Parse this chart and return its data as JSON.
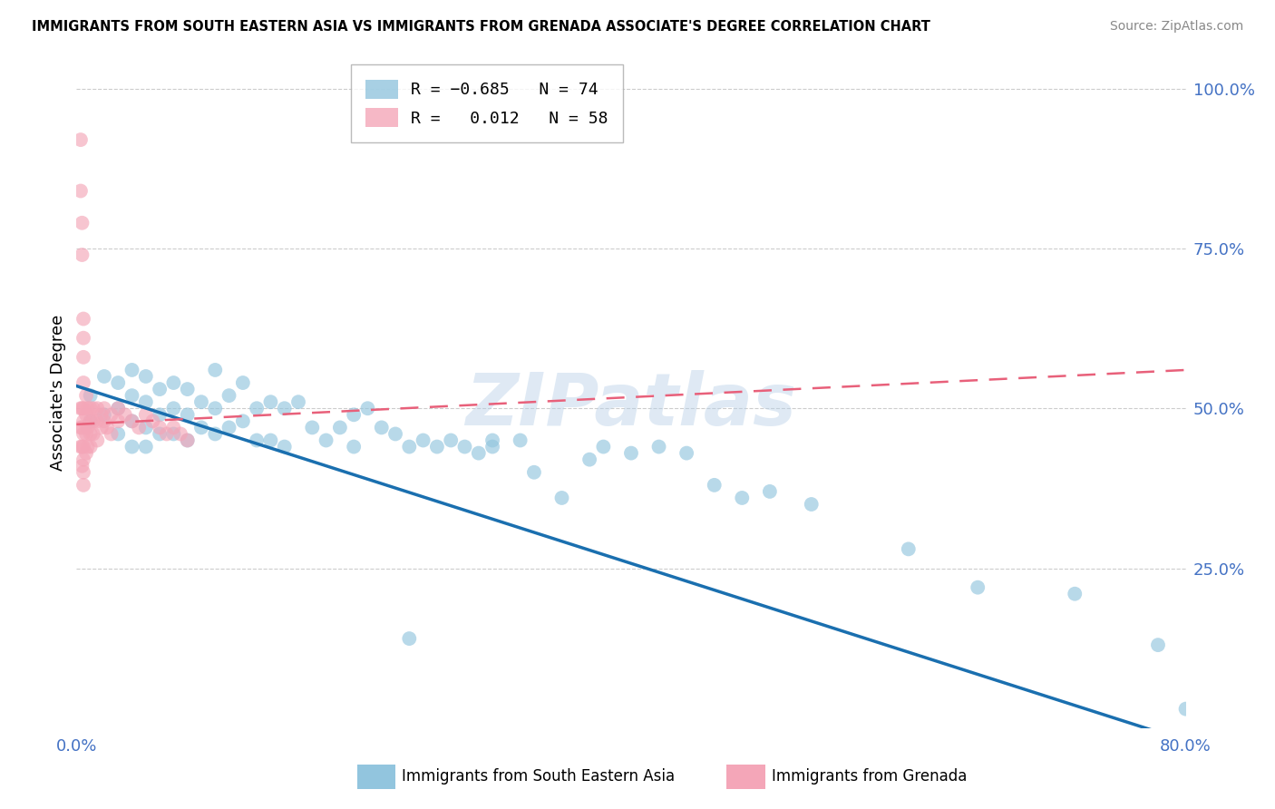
{
  "title": "IMMIGRANTS FROM SOUTH EASTERN ASIA VS IMMIGRANTS FROM GRENADA ASSOCIATE'S DEGREE CORRELATION CHART",
  "source": "Source: ZipAtlas.com",
  "ylabel": "Associate's Degree",
  "right_yticks": [
    "100.0%",
    "75.0%",
    "50.0%",
    "25.0%"
  ],
  "right_ytick_vals": [
    1.0,
    0.75,
    0.5,
    0.25
  ],
  "color_blue": "#92c5de",
  "color_pink": "#f4a6b8",
  "trendline_blue_color": "#1a6faf",
  "trendline_pink_color": "#e8607a",
  "watermark": "ZIPatlas",
  "xlim": [
    0.0,
    0.8
  ],
  "ylim": [
    0.0,
    1.05
  ],
  "background_color": "#ffffff",
  "grid_color": "#cccccc",
  "blue_scatter_x": [
    0.01,
    0.01,
    0.02,
    0.02,
    0.03,
    0.03,
    0.03,
    0.04,
    0.04,
    0.04,
    0.04,
    0.05,
    0.05,
    0.05,
    0.05,
    0.06,
    0.06,
    0.06,
    0.07,
    0.07,
    0.07,
    0.08,
    0.08,
    0.08,
    0.09,
    0.09,
    0.1,
    0.1,
    0.1,
    0.11,
    0.11,
    0.12,
    0.12,
    0.13,
    0.13,
    0.14,
    0.14,
    0.15,
    0.15,
    0.16,
    0.17,
    0.18,
    0.19,
    0.2,
    0.2,
    0.21,
    0.22,
    0.23,
    0.24,
    0.25,
    0.26,
    0.27,
    0.28,
    0.29,
    0.3,
    0.3,
    0.32,
    0.33,
    0.35,
    0.37,
    0.38,
    0.4,
    0.42,
    0.44,
    0.46,
    0.48,
    0.5,
    0.53,
    0.6,
    0.65,
    0.72,
    0.78,
    0.8,
    0.24
  ],
  "blue_scatter_y": [
    0.52,
    0.48,
    0.55,
    0.49,
    0.54,
    0.5,
    0.46,
    0.56,
    0.52,
    0.48,
    0.44,
    0.55,
    0.51,
    0.47,
    0.44,
    0.53,
    0.49,
    0.46,
    0.54,
    0.5,
    0.46,
    0.53,
    0.49,
    0.45,
    0.51,
    0.47,
    0.56,
    0.5,
    0.46,
    0.52,
    0.47,
    0.54,
    0.48,
    0.5,
    0.45,
    0.51,
    0.45,
    0.5,
    0.44,
    0.51,
    0.47,
    0.45,
    0.47,
    0.49,
    0.44,
    0.5,
    0.47,
    0.46,
    0.44,
    0.45,
    0.44,
    0.45,
    0.44,
    0.43,
    0.45,
    0.44,
    0.45,
    0.4,
    0.36,
    0.42,
    0.44,
    0.43,
    0.44,
    0.43,
    0.38,
    0.36,
    0.37,
    0.35,
    0.28,
    0.22,
    0.21,
    0.13,
    0.03,
    0.14
  ],
  "pink_scatter_x": [
    0.003,
    0.003,
    0.003,
    0.003,
    0.003,
    0.004,
    0.004,
    0.004,
    0.004,
    0.004,
    0.004,
    0.005,
    0.005,
    0.005,
    0.005,
    0.005,
    0.005,
    0.005,
    0.005,
    0.005,
    0.005,
    0.005,
    0.007,
    0.007,
    0.007,
    0.007,
    0.008,
    0.008,
    0.008,
    0.01,
    0.01,
    0.01,
    0.01,
    0.012,
    0.012,
    0.012,
    0.015,
    0.015,
    0.015,
    0.018,
    0.018,
    0.02,
    0.02,
    0.022,
    0.025,
    0.025,
    0.03,
    0.03,
    0.035,
    0.04,
    0.045,
    0.05,
    0.055,
    0.06,
    0.065,
    0.07,
    0.075,
    0.08
  ],
  "pink_scatter_y": [
    0.92,
    0.84,
    0.5,
    0.47,
    0.44,
    0.79,
    0.74,
    0.5,
    0.47,
    0.44,
    0.41,
    0.64,
    0.61,
    0.58,
    0.54,
    0.5,
    0.48,
    0.46,
    0.44,
    0.42,
    0.4,
    0.38,
    0.52,
    0.49,
    0.46,
    0.43,
    0.5,
    0.47,
    0.44,
    0.5,
    0.48,
    0.46,
    0.44,
    0.5,
    0.48,
    0.46,
    0.5,
    0.48,
    0.45,
    0.49,
    0.47,
    0.5,
    0.48,
    0.47,
    0.49,
    0.46,
    0.5,
    0.48,
    0.49,
    0.48,
    0.47,
    0.49,
    0.48,
    0.47,
    0.46,
    0.47,
    0.46,
    0.45
  ],
  "blue_trend_x0": 0.0,
  "blue_trend_y0": 0.535,
  "blue_trend_x1": 0.8,
  "blue_trend_y1": -0.02,
  "pink_trend_x0": 0.0,
  "pink_trend_y0": 0.475,
  "pink_trend_x1": 0.8,
  "pink_trend_y1": 0.56
}
